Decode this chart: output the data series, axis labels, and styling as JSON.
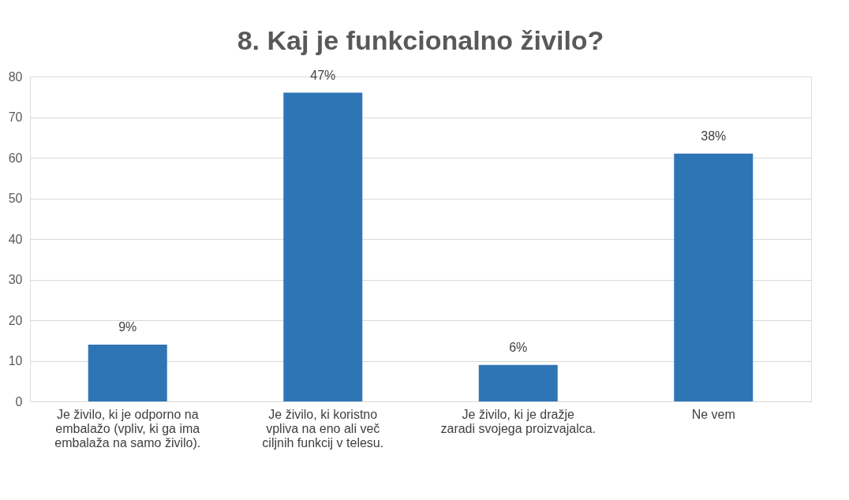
{
  "chart_data": {
    "type": "bar",
    "title": "8. Kaj je funkcionalno živilo?",
    "categories": [
      "Je živilo, ki je odporno na embalažo (vpliv, ki ga ima embalaža na samo živilo).",
      "Je živilo, ki koristno vpliva na eno ali več ciljnih funkcij v telesu.",
      "Je živilo, ki je dražje zaradi svojega proizvajalca.",
      "Ne vem"
    ],
    "values": [
      14,
      76,
      9,
      61
    ],
    "annotations": [
      {
        "text": "9%",
        "x": "Je živilo, ki je odporno na embalažo (vpliv, ki ga ima embalaža na samo živilo).",
        "y": 14
      },
      {
        "text": "47%",
        "x": "Je živilo, ki koristno vpliva na eno ali več ciljnih funkcij v telesu.",
        "y": 76
      },
      {
        "text": "6%",
        "x": "Je živilo, ki je dražje zaradi svojega proizvajalca.",
        "y": 9
      },
      {
        "text": "38%",
        "x": "Ne vem",
        "y": 61
      }
    ],
    "color": "#2e75b6",
    "ylim": [
      0,
      80
    ],
    "yticks": [
      0,
      10,
      20,
      30,
      40,
      50,
      60,
      70,
      80
    ],
    "grid": "y"
  }
}
